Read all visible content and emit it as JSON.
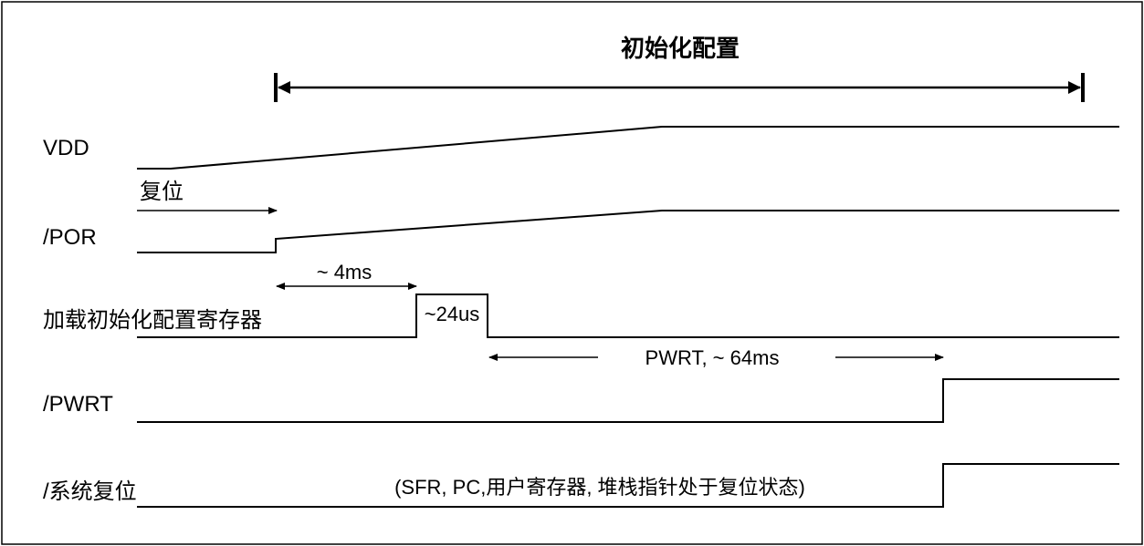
{
  "diagram": {
    "title": "初始化配置",
    "signals": {
      "vdd": "VDD",
      "por": "/POR",
      "load": "加载初始化配置寄存器",
      "pwrt": "/PWRT",
      "sysreset": "/系统复位"
    },
    "annotations": {
      "reset": "复位",
      "delay_4ms": "~ 4ms",
      "pulse_24us": "~24us",
      "pwrt_period": "PWRT, ~ 64ms",
      "sysreset_note": "(SFR, PC,用户寄存器, 堆栈指针处于复位状态)"
    }
  }
}
